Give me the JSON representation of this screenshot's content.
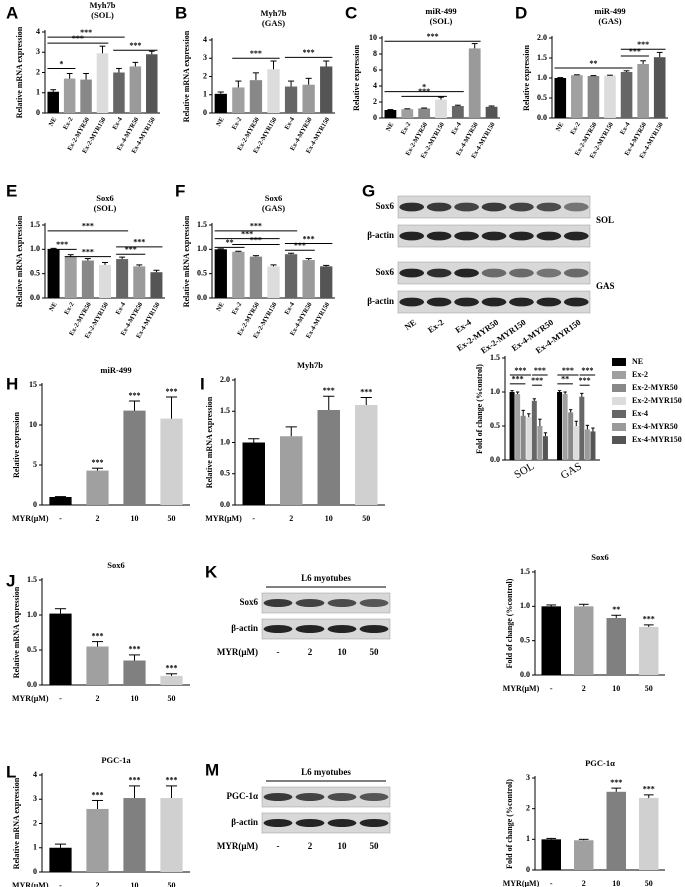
{
  "chart_data": [
    {
      "type": "bar",
      "panel": "A",
      "title": "Myh7b",
      "subtitle": "(SOL)",
      "ylabel": "Relative mRNA expression",
      "categories": [
        "NE",
        "Ex-2",
        "Ex-2-MYR50",
        "Ex-2-MYR150",
        "Ex-4",
        "Ex-4-MYR50",
        "Ex-4-MYR150"
      ],
      "values": [
        1.05,
        1.7,
        1.65,
        2.95,
        2.0,
        2.3,
        2.9
      ],
      "errors": [
        0.1,
        0.25,
        0.3,
        0.35,
        0.2,
        0.2,
        0.15
      ],
      "colors": [
        "#000000",
        "#a0a0a0",
        "#888888",
        "#dcdcdc",
        "#666666",
        "#9a9a9a",
        "#555555"
      ],
      "ylim": [
        0,
        4
      ],
      "yticks": [
        0,
        1,
        2,
        3,
        4
      ],
      "annotations": [
        "***",
        "***",
        "*",
        "***"
      ]
    },
    {
      "type": "bar",
      "panel": "B",
      "title": "Myh7b",
      "subtitle": "(GAS)",
      "ylabel": "Relative mRNA expression",
      "categories": [
        "NE",
        "Ex-2",
        "Ex-2-MYR50",
        "Ex-2-MYR150",
        "Ex-4",
        "Ex-4-MYR50",
        "Ex-4-MYR150"
      ],
      "values": [
        1.05,
        1.4,
        1.8,
        2.4,
        1.45,
        1.55,
        2.55
      ],
      "errors": [
        0.1,
        0.35,
        0.4,
        0.45,
        0.3,
        0.35,
        0.3
      ],
      "colors": [
        "#000000",
        "#a0a0a0",
        "#888888",
        "#dcdcdc",
        "#666666",
        "#9a9a9a",
        "#555555"
      ],
      "ylim": [
        0,
        4
      ],
      "yticks": [
        0,
        1,
        2,
        3,
        4
      ],
      "annotations": [
        "***",
        "***"
      ]
    },
    {
      "type": "bar",
      "panel": "C",
      "title": "miR-499",
      "subtitle": "(SOL)",
      "ylabel": "Relative expression",
      "categories": [
        "NE",
        "Ex-2",
        "Ex-2-MYR50",
        "Ex-2-MYR150",
        "Ex-4",
        "Ex-4-MYR50",
        "Ex-4-MYR150"
      ],
      "values": [
        1.0,
        1.1,
        1.2,
        2.3,
        1.5,
        8.7,
        1.4
      ],
      "errors": [
        0.05,
        0.05,
        0.05,
        0.3,
        0.1,
        0.6,
        0.1
      ],
      "colors": [
        "#000000",
        "#a0a0a0",
        "#888888",
        "#dcdcdc",
        "#666666",
        "#9a9a9a",
        "#555555"
      ],
      "ylim": [
        0,
        10
      ],
      "yticks": [
        0,
        2,
        4,
        6,
        8,
        10
      ],
      "annotations": [
        "***",
        "*",
        "***"
      ]
    },
    {
      "type": "bar",
      "panel": "D",
      "title": "miR-499",
      "subtitle": "(GAS)",
      "ylabel": "Relative expression",
      "categories": [
        "NE",
        "Ex-2",
        "Ex-2-MYR50",
        "Ex-2-MYR150",
        "Ex-4",
        "Ex-4-MYR50",
        "Ex-4-MYR150"
      ],
      "values": [
        1.0,
        1.07,
        1.05,
        1.06,
        1.15,
        1.35,
        1.52
      ],
      "errors": [
        0.01,
        0.01,
        0.01,
        0.01,
        0.03,
        0.08,
        0.12
      ],
      "colors": [
        "#000000",
        "#a0a0a0",
        "#888888",
        "#dcdcdc",
        "#666666",
        "#9a9a9a",
        "#555555"
      ],
      "ylim": [
        0,
        2
      ],
      "yticks": [
        {
          "value": 0,
          "label": "0.0"
        },
        {
          "value": 0.5,
          "label": "0.5"
        },
        {
          "value": 1,
          "label": "1.0"
        },
        {
          "value": 1.5,
          "label": "1.5"
        },
        {
          "value": 2,
          "label": "2.0"
        }
      ],
      "annotations": [
        "**",
        "***",
        "***"
      ]
    },
    {
      "type": "bar",
      "panel": "E",
      "title": "Sox6",
      "subtitle": "(SOL)",
      "ylabel": "Relative mRNA expression",
      "categories": [
        "NE",
        "Ex-2",
        "Ex-2-MYR50",
        "Ex-2-MYR150",
        "Ex-4",
        "Ex-4-MYR50",
        "Ex-4-MYR150"
      ],
      "values": [
        1.0,
        0.85,
        0.77,
        0.68,
        0.8,
        0.65,
        0.53
      ],
      "errors": [
        0.02,
        0.04,
        0.04,
        0.05,
        0.04,
        0.03,
        0.04
      ],
      "colors": [
        "#000000",
        "#a0a0a0",
        "#888888",
        "#dcdcdc",
        "#666666",
        "#9a9a9a",
        "#555555"
      ],
      "ylim": [
        0,
        1.5
      ],
      "yticks": [
        {
          "value": 0,
          "label": "0.0"
        },
        {
          "value": 0.5,
          "label": "0.5"
        },
        {
          "value": 1,
          "label": "1.0"
        },
        {
          "value": 1.5,
          "label": "1.5"
        }
      ],
      "annotations": [
        "***",
        "***",
        "***",
        "***",
        "***"
      ]
    },
    {
      "type": "bar",
      "panel": "F",
      "title": "Sox6",
      "subtitle": "(GAS)",
      "ylabel": "Relative mRNA expression",
      "categories": [
        "NE",
        "Ex-2",
        "Ex-2-MYR50",
        "Ex-2-MYR150",
        "Ex-4",
        "Ex-4-MYR50",
        "Ex-4-MYR150"
      ],
      "values": [
        1.0,
        0.95,
        0.85,
        0.65,
        0.9,
        0.78,
        0.65
      ],
      "errors": [
        0.01,
        0.01,
        0.02,
        0.03,
        0.02,
        0.03,
        0.02
      ],
      "colors": [
        "#000000",
        "#a0a0a0",
        "#888888",
        "#dcdcdc",
        "#666666",
        "#9a9a9a",
        "#555555"
      ],
      "ylim": [
        0,
        1.5
      ],
      "yticks": [
        {
          "value": 0,
          "label": "0.0"
        },
        {
          "value": 0.5,
          "label": "0.5"
        },
        {
          "value": 1,
          "label": "1.0"
        },
        {
          "value": 1.5,
          "label": "1.5"
        }
      ],
      "annotations": [
        "***",
        "**",
        "***",
        "***",
        "***",
        "***"
      ]
    },
    {
      "type": "grouped_bar",
      "ylabel": "Fold of change (%control)",
      "categories": [
        "SOL",
        "GAS"
      ],
      "series": [
        {
          "name": "NE",
          "color": "#000000",
          "values": [
            1.0,
            1.0
          ],
          "errors": [
            0.02,
            0.02
          ]
        },
        {
          "name": "Ex-2",
          "color": "#a0a0a0",
          "values": [
            0.97,
            0.97
          ],
          "errors": [
            0.03,
            0.03
          ]
        },
        {
          "name": "Ex-2-MYR50",
          "color": "#888888",
          "values": [
            0.65,
            0.7
          ],
          "errors": [
            0.08,
            0.04
          ]
        },
        {
          "name": "Ex-2-MYR150",
          "color": "#dcdcdc",
          "values": [
            0.63,
            0.5
          ],
          "errors": [
            0.05,
            0.07
          ]
        },
        {
          "name": "Ex-4",
          "color": "#666666",
          "values": [
            0.87,
            0.93
          ],
          "errors": [
            0.03,
            0.05
          ]
        },
        {
          "name": "Ex-4-MYR50",
          "color": "#9a9a9a",
          "values": [
            0.5,
            0.45
          ],
          "errors": [
            0.1,
            0.06
          ]
        },
        {
          "name": "Ex-4-MYR150",
          "color": "#555555",
          "values": [
            0.35,
            0.42
          ],
          "errors": [
            0.05,
            0.05
          ]
        }
      ],
      "ylim": [
        0,
        1.5
      ],
      "yticks": [
        {
          "value": 0,
          "label": "0.0"
        },
        {
          "value": 0.5,
          "label": "0.5"
        },
        {
          "value": 1,
          "label": "1.0"
        },
        {
          "value": 1.5,
          "label": "1.5"
        }
      ],
      "annotations": [
        "***",
        "***",
        "***",
        "***",
        "***",
        "**",
        "***",
        "***"
      ]
    },
    {
      "type": "bar",
      "panel": "H",
      "title": "miR-499",
      "ylabel": "Relative expression",
      "xlabel": "MYR(μM)",
      "categories": [
        "-",
        "2",
        "10",
        "50"
      ],
      "values": [
        1.0,
        4.3,
        11.8,
        10.8
      ],
      "errors": [
        0.05,
        0.3,
        1.2,
        2.7
      ],
      "colors": [
        "#000000",
        "#a0a0a0",
        "#808080",
        "#d0d0d0"
      ],
      "ylim": [
        0,
        15
      ],
      "yticks": [
        0,
        5,
        10,
        15
      ],
      "significance": [
        null,
        "***",
        "***",
        "***"
      ]
    },
    {
      "type": "bar",
      "panel": "I",
      "title": "Myh7b",
      "ylabel": "Relative mRNA expression",
      "xlabel": "MYR(μM)",
      "categories": [
        "-",
        "2",
        "10",
        "50"
      ],
      "values": [
        1.0,
        1.1,
        1.52,
        1.6
      ],
      "errors": [
        0.06,
        0.15,
        0.22,
        0.12
      ],
      "colors": [
        "#000000",
        "#a0a0a0",
        "#808080",
        "#d0d0d0"
      ],
      "ylim": [
        0,
        2
      ],
      "yticks": [
        {
          "value": 0,
          "label": "0.0"
        },
        {
          "value": 0.5,
          "label": "0.5"
        },
        {
          "value": 1,
          "label": "1.0"
        },
        {
          "value": 1.5,
          "label": "1.5"
        },
        {
          "value": 2,
          "label": "2.0"
        }
      ],
      "significance": [
        null,
        null,
        "***",
        "***"
      ]
    },
    {
      "type": "bar",
      "panel": "J",
      "title": "Sox6",
      "ylabel": "Relative mRNA expression",
      "xlabel": "MYR(μM)",
      "categories": [
        "-",
        "2",
        "10",
        "50"
      ],
      "values": [
        1.02,
        0.55,
        0.35,
        0.13
      ],
      "errors": [
        0.07,
        0.07,
        0.08,
        0.03
      ],
      "colors": [
        "#000000",
        "#a0a0a0",
        "#808080",
        "#d0d0d0"
      ],
      "ylim": [
        0,
        1.5
      ],
      "yticks": [
        {
          "value": 0,
          "label": "0.0"
        },
        {
          "value": 0.5,
          "label": "0.5"
        },
        {
          "value": 1,
          "label": "1.0"
        },
        {
          "value": 1.5,
          "label": "1.5"
        }
      ],
      "significance": [
        null,
        "***",
        "***",
        "***"
      ]
    },
    {
      "type": "bar",
      "title": "Sox6",
      "ylabel": "Fold of change (%control)",
      "xlabel": "MYR(μM)",
      "categories": [
        "-",
        "2",
        "10",
        "50"
      ],
      "values": [
        1.0,
        1.0,
        0.83,
        0.7
      ],
      "errors": [
        0.02,
        0.03,
        0.04,
        0.03
      ],
      "colors": [
        "#000000",
        "#a0a0a0",
        "#808080",
        "#d0d0d0"
      ],
      "ylim": [
        0,
        1.5
      ],
      "yticks": [
        {
          "value": 0,
          "label": "0.0"
        },
        {
          "value": 0.5,
          "label": "0.5"
        },
        {
          "value": 1,
          "label": "1.0"
        },
        {
          "value": 1.5,
          "label": "1.5"
        }
      ],
      "significance": [
        null,
        null,
        "**",
        "***"
      ]
    },
    {
      "type": "bar",
      "panel": "L",
      "title": "PGC-1a",
      "ylabel": "Relative mRNA expression",
      "xlabel": "MYR(μM)",
      "categories": [
        "-",
        "2",
        "10",
        "50"
      ],
      "values": [
        1.0,
        2.6,
        3.05,
        3.05
      ],
      "errors": [
        0.15,
        0.35,
        0.5,
        0.5
      ],
      "colors": [
        "#000000",
        "#a0a0a0",
        "#808080",
        "#d0d0d0"
      ],
      "ylim": [
        0,
        4
      ],
      "yticks": [
        0,
        1,
        2,
        3,
        4
      ],
      "significance": [
        null,
        "***",
        "***",
        "***"
      ]
    },
    {
      "type": "bar",
      "title": "PGC-1α",
      "ylabel": "Fold of change (%control)",
      "xlabel": "MYR(μM)",
      "categories": [
        "-",
        "2",
        "10",
        "50"
      ],
      "values": [
        1.0,
        0.97,
        2.55,
        2.35
      ],
      "errors": [
        0.03,
        0.03,
        0.12,
        0.1
      ],
      "colors": [
        "#000000",
        "#a0a0a0",
        "#808080",
        "#d0d0d0"
      ],
      "ylim": [
        0,
        3
      ],
      "yticks": [
        0,
        1,
        2,
        3
      ],
      "significance": [
        null,
        null,
        "***",
        "***"
      ]
    }
  ],
  "blots": [
    {
      "panel": "G",
      "rows": [
        "Sox6",
        "β-actin",
        "Sox6",
        "β-actin"
      ],
      "groups": [
        "SOL",
        "GAS"
      ],
      "lanes": [
        "NE",
        "Ex-2",
        "Ex-4",
        "Ex-2-MYR50",
        "Ex-2-MYR150",
        "Ex-4-MYR50",
        "Ex-4-MYR150"
      ]
    },
    {
      "panel": "K",
      "header": "L6 myotubes",
      "rows": [
        "Sox6",
        "β-actin"
      ],
      "xlabel": "MYR(μM)",
      "lanes": [
        "-",
        "2",
        "10",
        "50"
      ]
    },
    {
      "panel": "M",
      "header": "L6 myotubes",
      "rows": [
        "PGC-1α",
        "β-actin"
      ],
      "xlabel": "MYR(μM)",
      "lanes": [
        "-",
        "2",
        "10",
        "50"
      ]
    }
  ]
}
